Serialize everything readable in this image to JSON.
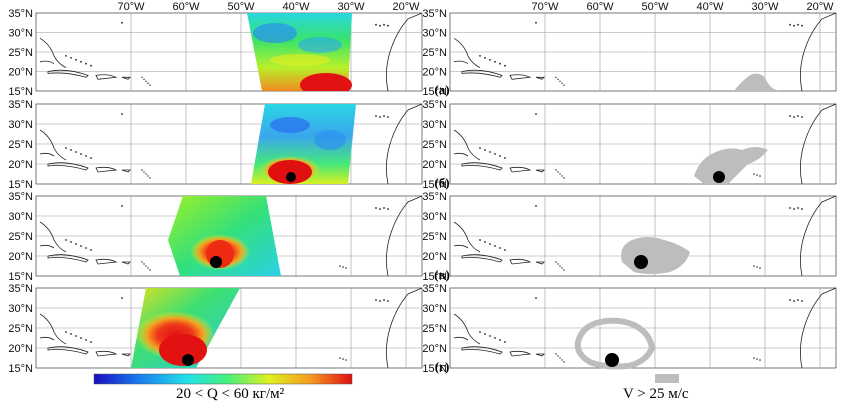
{
  "lon_labels": [
    "70°W",
    "60°W",
    "50°W",
    "40°W",
    "30°W",
    "20°W"
  ],
  "lat_labels": [
    "35°N",
    "30°N",
    "25°N",
    "20°N",
    "15°N"
  ],
  "row_labels": [
    "(а)",
    "(б)",
    "(в)",
    "(г)"
  ],
  "left_caption": "20 < Q < 60 кг/м²",
  "right_caption": "V > 25 м/с",
  "colorbar": {
    "colors": [
      "#1a0fbf",
      "#1a7ff0",
      "#22e0e8",
      "#48f07a",
      "#e0f020",
      "#f59a20",
      "#e01010"
    ]
  },
  "mask_color": "#bdbdbd",
  "center_marker_color": "#000000"
}
